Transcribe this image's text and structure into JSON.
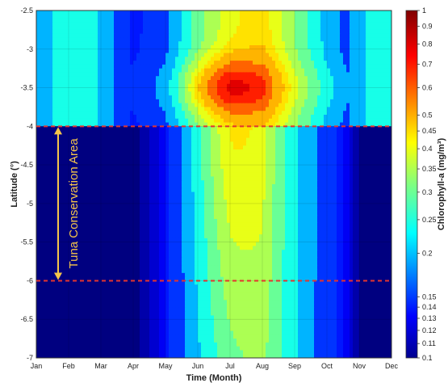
{
  "chart_data": {
    "type": "heatmap",
    "xlabel": "Time (Month)",
    "ylabel": "Latitude (°)",
    "colorbar_label": "Chlorophyll-a (mg/m³)",
    "x_ticks": [
      "Jan",
      "Feb",
      "Mar",
      "Apr",
      "May",
      "Jun",
      "Jul",
      "Aug",
      "Sep",
      "Oct",
      "Nov",
      "Dec"
    ],
    "y_ticks": [
      "-2.5",
      "-3",
      "-3.5",
      "-4",
      "-4.5",
      "-5",
      "-5.5",
      "-6",
      "-6.5",
      "-7"
    ],
    "y_tick_values": [
      -2.5,
      -3,
      -3.5,
      -4,
      -4.5,
      -5,
      -5.5,
      -6,
      -6.5,
      -7
    ],
    "ylim": [
      -7,
      -2.5
    ],
    "colorbar_ticks": [
      "1",
      "0.9",
      "0.8",
      "0.7",
      "0.6",
      "0.5",
      "0.45",
      "0.4",
      "0.35",
      "0.3",
      "0.25",
      "0.2",
      "0.15",
      "0.14",
      "0.13",
      "0.12",
      "0.11",
      "0.1"
    ],
    "colorbar_tick_values": [
      1,
      0.9,
      0.8,
      0.7,
      0.6,
      0.5,
      0.45,
      0.4,
      0.35,
      0.3,
      0.25,
      0.2,
      0.15,
      0.14,
      0.13,
      0.12,
      0.11,
      0.1
    ],
    "clim": [
      0.1,
      1
    ],
    "colorbar_scale": "log",
    "colormap": "jet",
    "grid": true,
    "annotation": {
      "text": "Tuna Conservation Area",
      "lat_top": -4,
      "lat_bottom": -6,
      "line_color": "#e3342f",
      "text_color": "#f5c54a"
    },
    "month_profile_values": [
      0.1,
      0.11,
      0.11,
      0.12,
      0.16,
      0.28,
      0.38,
      0.42,
      0.3,
      0.2,
      0.13,
      0.11,
      0.13
    ]
  }
}
